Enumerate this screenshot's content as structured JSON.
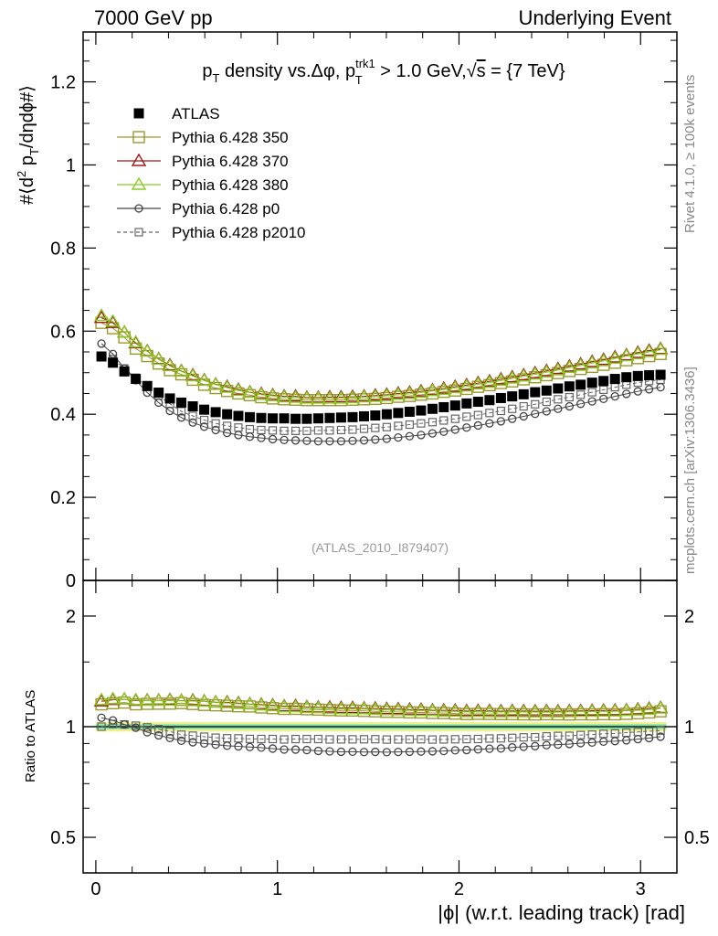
{
  "header": {
    "left": "7000 GeV pp",
    "right": "Underlying Event"
  },
  "side_labels": {
    "rivet": "Rivet 4.1.0, ≥ 100k events",
    "mcplots": "mcplots.cern.ch [arXiv:1306.3436]"
  },
  "chart_data": {
    "type": "scatter",
    "title": "p_T density vs. Δφ, p_T^trk1 > 1.0 GeV, √s = {7 TeV}",
    "title_parts": {
      "a": "p",
      "a_sub": "T",
      "b": " density vs.Δφ, p",
      "b_sup": "trk1",
      "b_sub": "T",
      "c": " > 1.0 GeV,",
      "sqrt": "√",
      "s": "s",
      "d": " = {7 TeV}"
    },
    "ylabel_parts": {
      "a": "#⟨d",
      "sup2": "2",
      "b": " p",
      "sub": "T",
      "c": "/dηdϕ#⟩"
    },
    "watermark": "(ATLAS_2010_I879407)",
    "xlabel": "|ϕ| (w.r.t. leading track) [rad]",
    "ratio_ylabel": "Ratio to ATLAS",
    "main_yticks": [
      "0",
      "0.2",
      "0.4",
      "0.6",
      "0.8",
      "1",
      "1.2"
    ],
    "ratio_yticks": [
      "0.5",
      "1",
      "2"
    ],
    "xticks": [
      "0",
      "1",
      "2",
      "3"
    ],
    "xlim": [
      -0.07,
      3.2
    ],
    "main_ylim": [
      0,
      1.32
    ],
    "ratio_ylim": [
      0.4,
      2.5
    ],
    "x": [
      0.031,
      0.094,
      0.157,
      0.22,
      0.283,
      0.346,
      0.408,
      0.471,
      0.534,
      0.597,
      0.66,
      0.723,
      0.785,
      0.848,
      0.911,
      0.974,
      1.037,
      1.1,
      1.162,
      1.225,
      1.288,
      1.351,
      1.414,
      1.477,
      1.539,
      1.602,
      1.665,
      1.728,
      1.791,
      1.854,
      1.916,
      1.979,
      2.042,
      2.105,
      2.168,
      2.231,
      2.293,
      2.356,
      2.419,
      2.482,
      2.545,
      2.608,
      2.67,
      2.733,
      2.796,
      2.859,
      2.922,
      2.985,
      3.047,
      3.11
    ],
    "series": [
      {
        "name": "ATLAS",
        "color": "#000000",
        "marker": "filled-square",
        "values": [
          0.539,
          0.524,
          0.503,
          0.485,
          0.468,
          0.452,
          0.438,
          0.428,
          0.419,
          0.411,
          0.405,
          0.4,
          0.396,
          0.393,
          0.391,
          0.39,
          0.39,
          0.389,
          0.389,
          0.39,
          0.391,
          0.392,
          0.393,
          0.395,
          0.397,
          0.4,
          0.403,
          0.406,
          0.409,
          0.413,
          0.417,
          0.421,
          0.426,
          0.43,
          0.434,
          0.439,
          0.443,
          0.448,
          0.453,
          0.457,
          0.462,
          0.467,
          0.471,
          0.476,
          0.48,
          0.485,
          0.489,
          0.492,
          0.494,
          0.495
        ]
      },
      {
        "name": "Pythia 6.428 350",
        "color": "#9a9a30",
        "marker": "open-square",
        "values": [
          0.62,
          0.607,
          0.585,
          0.558,
          0.54,
          0.522,
          0.506,
          0.496,
          0.483,
          0.471,
          0.463,
          0.456,
          0.45,
          0.446,
          0.441,
          0.438,
          0.436,
          0.435,
          0.434,
          0.434,
          0.434,
          0.434,
          0.435,
          0.436,
          0.437,
          0.439,
          0.442,
          0.444,
          0.447,
          0.45,
          0.454,
          0.457,
          0.461,
          0.466,
          0.47,
          0.475,
          0.479,
          0.484,
          0.489,
          0.494,
          0.499,
          0.504,
          0.509,
          0.514,
          0.519,
          0.524,
          0.53,
          0.535,
          0.54,
          0.545
        ]
      },
      {
        "name": "Pythia 6.428 370",
        "color": "#a01818",
        "marker": "open-triangle",
        "values": [
          0.632,
          0.62,
          0.597,
          0.571,
          0.552,
          0.533,
          0.518,
          0.504,
          0.494,
          0.482,
          0.472,
          0.466,
          0.459,
          0.453,
          0.449,
          0.446,
          0.443,
          0.443,
          0.44,
          0.44,
          0.441,
          0.441,
          0.442,
          0.443,
          0.445,
          0.447,
          0.45,
          0.452,
          0.455,
          0.458,
          0.462,
          0.466,
          0.47,
          0.475,
          0.479,
          0.484,
          0.489,
          0.494,
          0.499,
          0.504,
          0.509,
          0.515,
          0.52,
          0.526,
          0.531,
          0.537,
          0.542,
          0.548,
          0.553,
          0.557
        ]
      },
      {
        "name": "Pythia 6.428 380",
        "color": "#88cc22",
        "marker": "open-triangle",
        "values": [
          0.637,
          0.623,
          0.597,
          0.573,
          0.551,
          0.532,
          0.516,
          0.503,
          0.492,
          0.481,
          0.471,
          0.464,
          0.457,
          0.452,
          0.447,
          0.444,
          0.441,
          0.44,
          0.438,
          0.438,
          0.438,
          0.438,
          0.439,
          0.441,
          0.442,
          0.444,
          0.447,
          0.449,
          0.452,
          0.456,
          0.459,
          0.463,
          0.467,
          0.472,
          0.476,
          0.481,
          0.486,
          0.491,
          0.496,
          0.501,
          0.506,
          0.512,
          0.517,
          0.523,
          0.528,
          0.534,
          0.54,
          0.545,
          0.55,
          0.555
        ]
      },
      {
        "name": "Pythia 6.428 p0",
        "color": "#444444",
        "marker": "open-circle",
        "values": [
          0.57,
          0.545,
          0.51,
          0.482,
          0.452,
          0.428,
          0.408,
          0.392,
          0.38,
          0.37,
          0.362,
          0.355,
          0.35,
          0.346,
          0.343,
          0.34,
          0.338,
          0.337,
          0.336,
          0.335,
          0.335,
          0.335,
          0.336,
          0.337,
          0.339,
          0.341,
          0.344,
          0.347,
          0.35,
          0.354,
          0.358,
          0.363,
          0.368,
          0.373,
          0.378,
          0.383,
          0.389,
          0.395,
          0.401,
          0.407,
          0.413,
          0.419,
          0.425,
          0.431,
          0.437,
          0.443,
          0.449,
          0.455,
          0.46,
          0.465
        ]
      },
      {
        "name": "Pythia 6.428 p2010",
        "color": "#666666",
        "marker": "dashed-open-square",
        "values": [
          0.539,
          0.533,
          0.51,
          0.488,
          0.466,
          0.445,
          0.425,
          0.407,
          0.396,
          0.386,
          0.378,
          0.372,
          0.368,
          0.364,
          0.362,
          0.361,
          0.36,
          0.36,
          0.36,
          0.361,
          0.361,
          0.362,
          0.363,
          0.365,
          0.367,
          0.369,
          0.372,
          0.375,
          0.378,
          0.381,
          0.385,
          0.389,
          0.394,
          0.398,
          0.403,
          0.408,
          0.413,
          0.419,
          0.424,
          0.43,
          0.436,
          0.441,
          0.447,
          0.453,
          0.459,
          0.465,
          0.471,
          0.476,
          0.48,
          0.483
        ]
      }
    ],
    "legend_position": "top-left",
    "band": {
      "inner": 0.015,
      "outer": 0.03,
      "inner_color": "#7ee0a8",
      "outer_color": "#f0f090"
    }
  }
}
